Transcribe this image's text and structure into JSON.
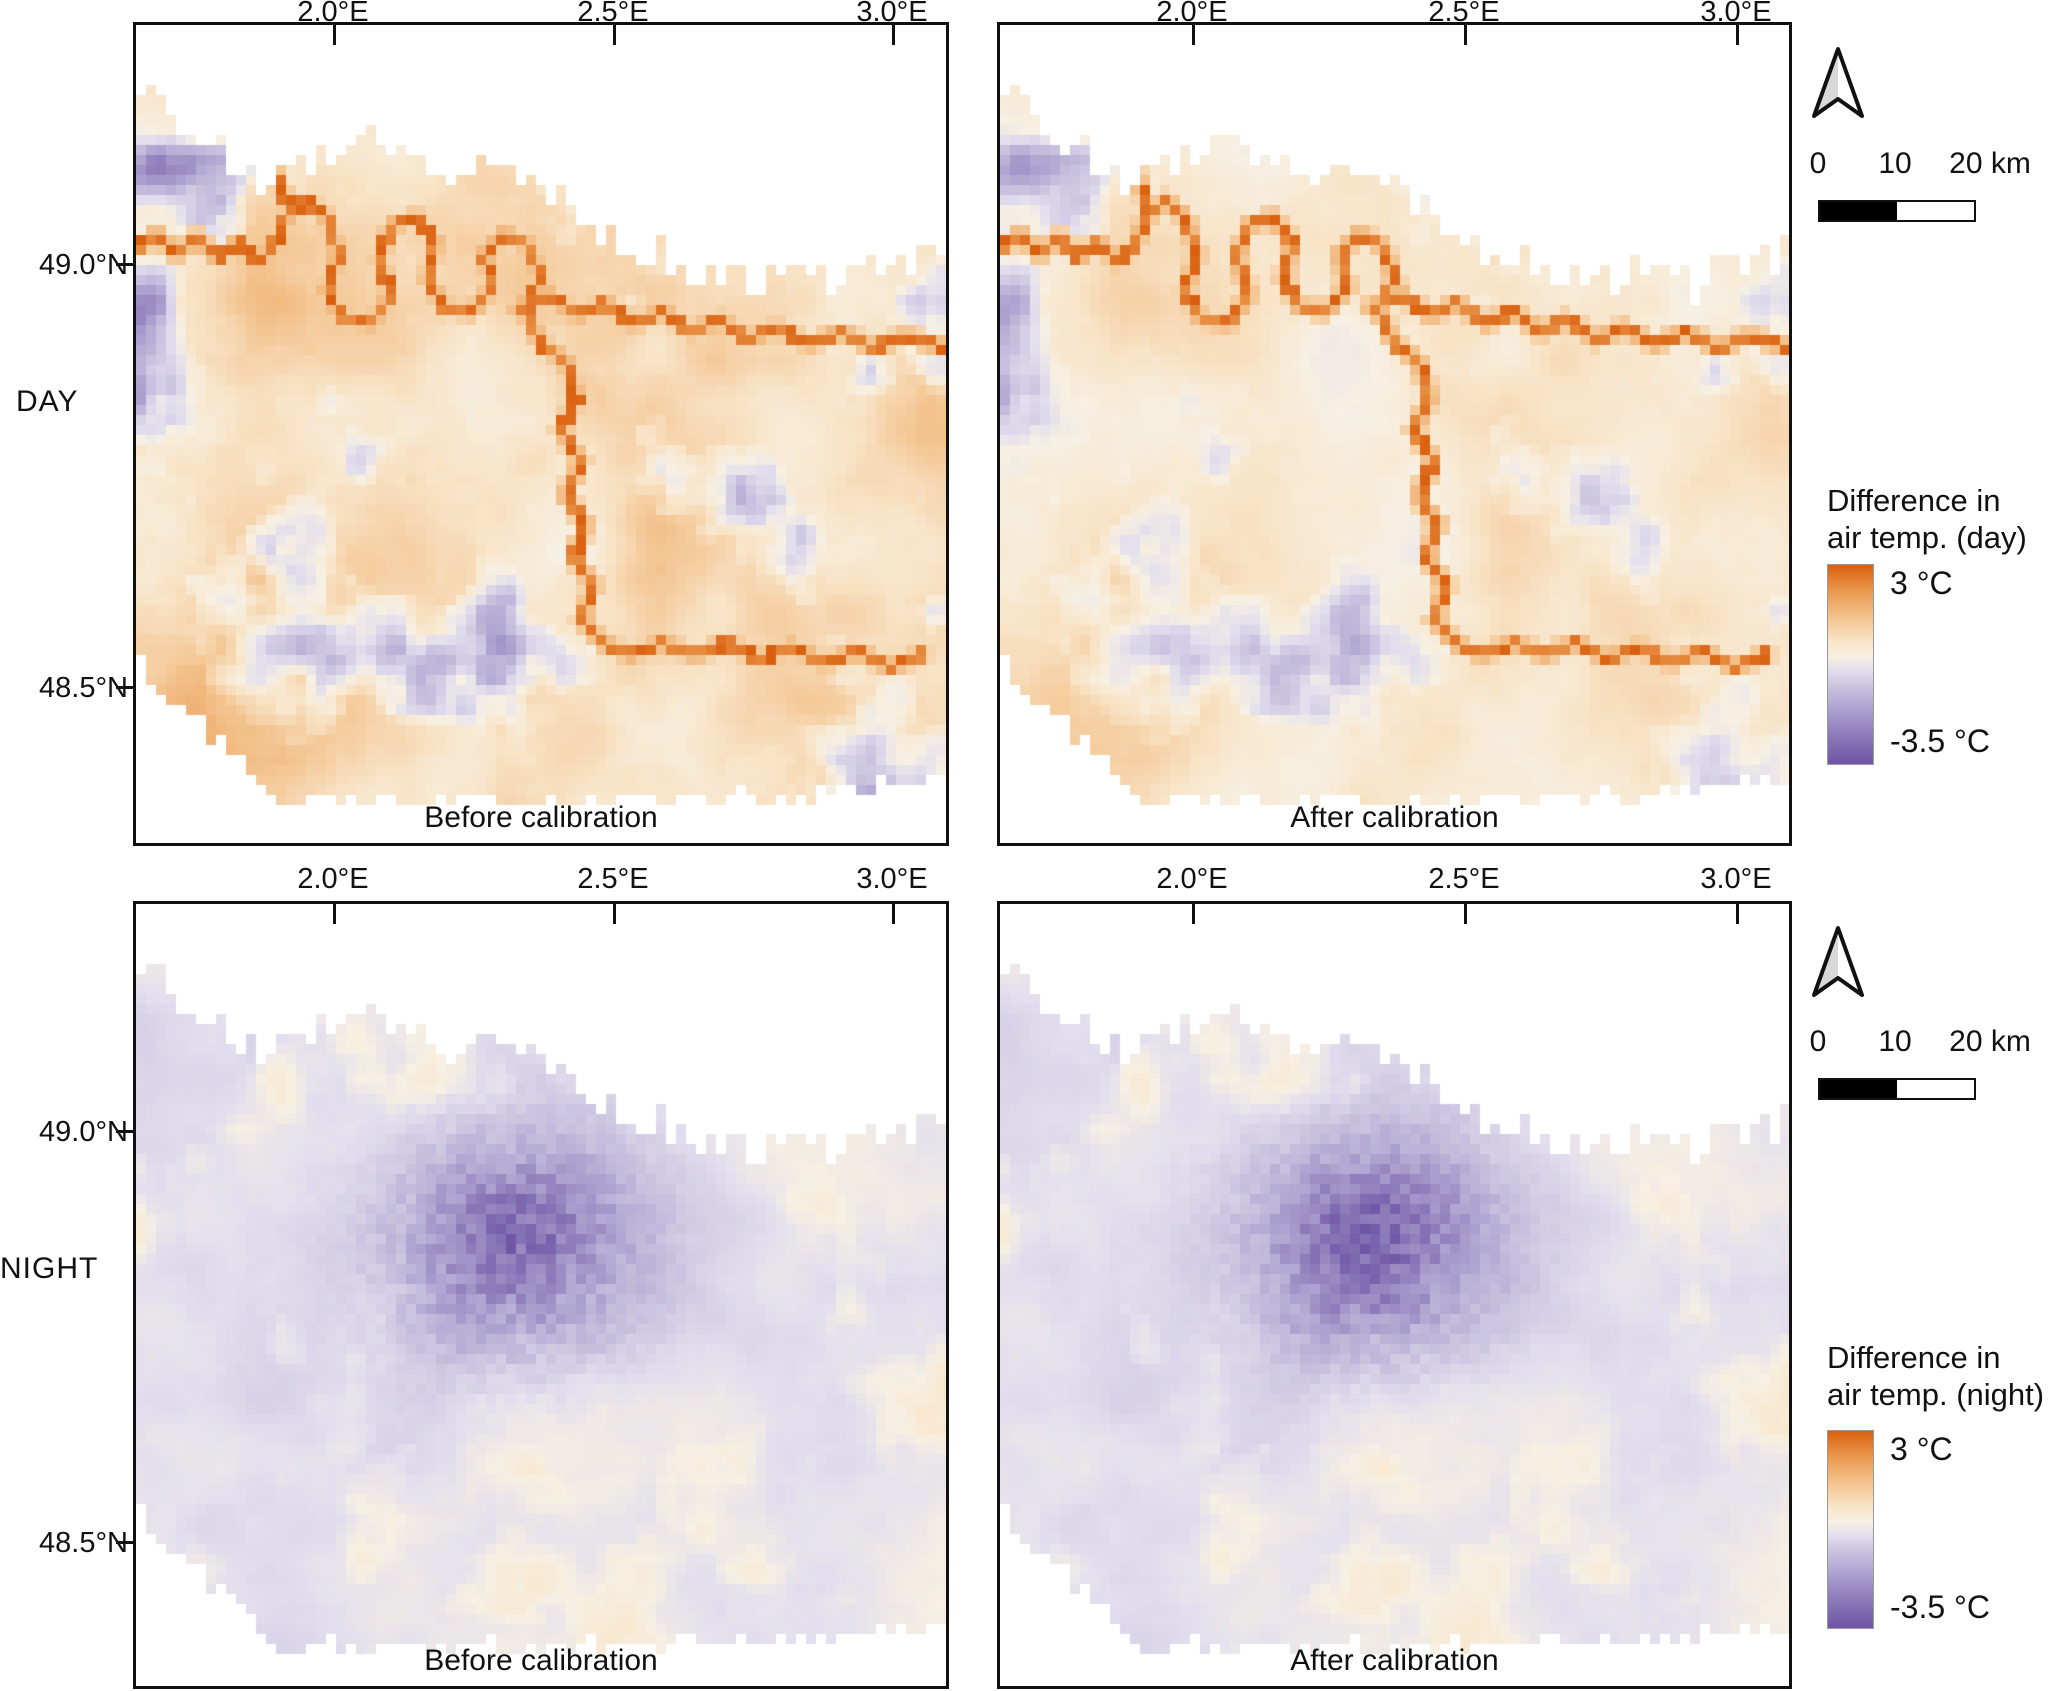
{
  "rows": [
    {
      "label": "DAY",
      "x_ticks": [
        "2.0°E",
        "2.5°E",
        "3.0°E"
      ],
      "y_ticks": [
        "49.0°N",
        "48.5°N"
      ],
      "panels": [
        {
          "caption": "Before calibration"
        },
        {
          "caption": "After calibration"
        }
      ],
      "scalebar": {
        "labels": [
          "0",
          "10",
          "20 km"
        ]
      },
      "legend": {
        "title_line1": "Difference in",
        "title_line2": "air temp. (day)",
        "max_label": "3 °C",
        "min_label": "-3.5 °C"
      },
      "north_arrow": "north-arrow"
    },
    {
      "label": "NIGHT",
      "x_ticks": [
        "2.0°E",
        "2.5°E",
        "3.0°E"
      ],
      "y_ticks": [
        "49.0°N",
        "48.5°N"
      ],
      "panels": [
        {
          "caption": "Before calibration"
        },
        {
          "caption": "After calibration"
        }
      ],
      "scalebar": {
        "labels": [
          "0",
          "10",
          "20 km"
        ]
      },
      "legend": {
        "title_line1": "Difference in",
        "title_line2": "air temp. (night)",
        "max_label": "3 °C",
        "min_label": "-3.5 °C"
      },
      "north_arrow": "north-arrow"
    }
  ],
  "chart_data": {
    "type": "heatmap",
    "variable": "Difference in air temperature (°C)",
    "value_range": [
      -3.5,
      3
    ],
    "legend_max": "3 °C",
    "legend_min": "-3.5 °C",
    "extent": {
      "lon_deg_E": [
        1.65,
        3.09
      ],
      "lat_deg_N": [
        48.31,
        49.28
      ]
    },
    "x_ticks_deg_E": [
      2.0,
      2.5,
      3.0
    ],
    "y_ticks_deg_N": [
      49.0,
      48.5
    ],
    "scalebar_km": [
      0,
      10,
      20
    ],
    "panels": [
      {
        "row": "DAY",
        "column": "Before calibration",
        "pattern": "mostly warm +0.5 to +1.5 °C; Seine/Marne river pixels reach +3 °C; scattered cool lavender patches"
      },
      {
        "row": "DAY",
        "column": "After calibration",
        "pattern": "warm bias attenuated; more neutral and lavender cells near the river loops and city centre"
      },
      {
        "row": "NIGHT",
        "column": "Before calibration",
        "pattern": "mostly -0.5 to 0 °C pale field; strong cool core down to about -3 °C over the central urban area"
      },
      {
        "row": "NIGHT",
        "column": "After calibration",
        "pattern": "same pale field with slightly deeper and wider cool urban core"
      }
    ],
    "colormap_stops": [
      [
        3.0,
        "#D95F0E"
      ],
      [
        2.2,
        "#E9954A"
      ],
      [
        1.2,
        "#F4C795"
      ],
      [
        0.5,
        "#F8E4C8"
      ],
      [
        0.0,
        "#F7F0E3"
      ],
      [
        -0.45,
        "#E2DEED"
      ],
      [
        -1.0,
        "#C8C2DF"
      ],
      [
        -1.8,
        "#A99DCD"
      ],
      [
        -2.6,
        "#8A79B8"
      ],
      [
        -3.5,
        "#6F55A6"
      ]
    ]
  },
  "render": {
    "cell": 10,
    "mask_top": [
      [
        0,
        0.07
      ],
      [
        0.02,
        0.055
      ],
      [
        0.03,
        0.1
      ],
      [
        0.06,
        0.13
      ],
      [
        0.1,
        0.155
      ],
      [
        0.14,
        0.175
      ],
      [
        0.17,
        0.185
      ],
      [
        0.2,
        0.165
      ],
      [
        0.24,
        0.145
      ],
      [
        0.29,
        0.125
      ],
      [
        0.33,
        0.155
      ],
      [
        0.38,
        0.185
      ],
      [
        0.43,
        0.165
      ],
      [
        0.47,
        0.19
      ],
      [
        0.52,
        0.22
      ],
      [
        0.57,
        0.25
      ],
      [
        0.63,
        0.28
      ],
      [
        0.7,
        0.3
      ],
      [
        0.76,
        0.315
      ],
      [
        0.82,
        0.305
      ],
      [
        0.88,
        0.315
      ],
      [
        0.94,
        0.3
      ],
      [
        1.0,
        0.285
      ]
    ],
    "mask_bottom": [
      [
        0,
        0.945
      ],
      [
        0.5,
        0.95
      ],
      [
        0.8,
        0.94
      ],
      [
        1,
        0.925
      ]
    ],
    "cut_left": {
      "u_max": 0.17,
      "v0": 0.77,
      "slope": 1.05
    },
    "rivers": {
      "seine": [
        [
          0.0,
          0.275
        ],
        [
          0.025,
          0.255
        ],
        [
          0.05,
          0.28
        ],
        [
          0.075,
          0.26
        ],
        [
          0.1,
          0.285
        ],
        [
          0.125,
          0.265
        ],
        [
          0.15,
          0.29
        ],
        [
          0.17,
          0.27
        ],
        [
          0.185,
          0.235
        ],
        [
          0.21,
          0.215
        ],
        [
          0.235,
          0.235
        ],
        [
          0.25,
          0.28
        ],
        [
          0.235,
          0.325
        ],
        [
          0.255,
          0.36
        ],
        [
          0.29,
          0.365
        ],
        [
          0.315,
          0.33
        ],
        [
          0.3,
          0.285
        ],
        [
          0.315,
          0.245
        ],
        [
          0.345,
          0.235
        ],
        [
          0.37,
          0.265
        ],
        [
          0.36,
          0.31
        ],
        [
          0.38,
          0.345
        ],
        [
          0.415,
          0.35
        ],
        [
          0.44,
          0.32
        ],
        [
          0.43,
          0.28
        ],
        [
          0.455,
          0.255
        ],
        [
          0.485,
          0.27
        ],
        [
          0.5,
          0.31
        ],
        [
          0.48,
          0.35
        ],
        [
          0.5,
          0.39
        ],
        [
          0.53,
          0.41
        ],
        [
          0.545,
          0.455
        ],
        [
          0.525,
          0.495
        ],
        [
          0.55,
          0.535
        ],
        [
          0.53,
          0.575
        ],
        [
          0.555,
          0.61
        ],
        [
          0.54,
          0.65
        ],
        [
          0.565,
          0.685
        ],
        [
          0.55,
          0.725
        ],
        [
          0.575,
          0.755
        ],
        [
          0.61,
          0.77
        ],
        [
          0.65,
          0.755
        ],
        [
          0.69,
          0.77
        ],
        [
          0.73,
          0.755
        ],
        [
          0.77,
          0.775
        ],
        [
          0.81,
          0.76
        ],
        [
          0.85,
          0.78
        ],
        [
          0.89,
          0.765
        ],
        [
          0.93,
          0.785
        ],
        [
          0.97,
          0.77
        ]
      ],
      "marne": [
        [
          0.47,
          0.345
        ],
        [
          0.51,
          0.33
        ],
        [
          0.545,
          0.355
        ],
        [
          0.58,
          0.34
        ],
        [
          0.615,
          0.365
        ],
        [
          0.65,
          0.35
        ],
        [
          0.685,
          0.375
        ],
        [
          0.72,
          0.36
        ],
        [
          0.755,
          0.385
        ],
        [
          0.79,
          0.37
        ],
        [
          0.83,
          0.39
        ],
        [
          0.87,
          0.375
        ],
        [
          0.91,
          0.395
        ],
        [
          0.95,
          0.38
        ],
        [
          1.0,
          0.395
        ]
      ],
      "oise": [
        [
          0.115,
          0.075
        ],
        [
          0.13,
          0.115
        ],
        [
          0.155,
          0.15
        ],
        [
          0.175,
          0.19
        ],
        [
          0.19,
          0.225
        ]
      ]
    },
    "night_blob": {
      "u": 0.465,
      "v": 0.44,
      "sigma2": 0.011,
      "depth_before": 1.9,
      "depth_after": 2.15
    },
    "panels": [
      {
        "canvas": "cv-db",
        "kind": "day",
        "variant": "before"
      },
      {
        "canvas": "cv-da",
        "kind": "day",
        "variant": "after"
      },
      {
        "canvas": "cv-nb",
        "kind": "night",
        "variant": "before"
      },
      {
        "canvas": "cv-na",
        "kind": "night",
        "variant": "after"
      }
    ]
  }
}
